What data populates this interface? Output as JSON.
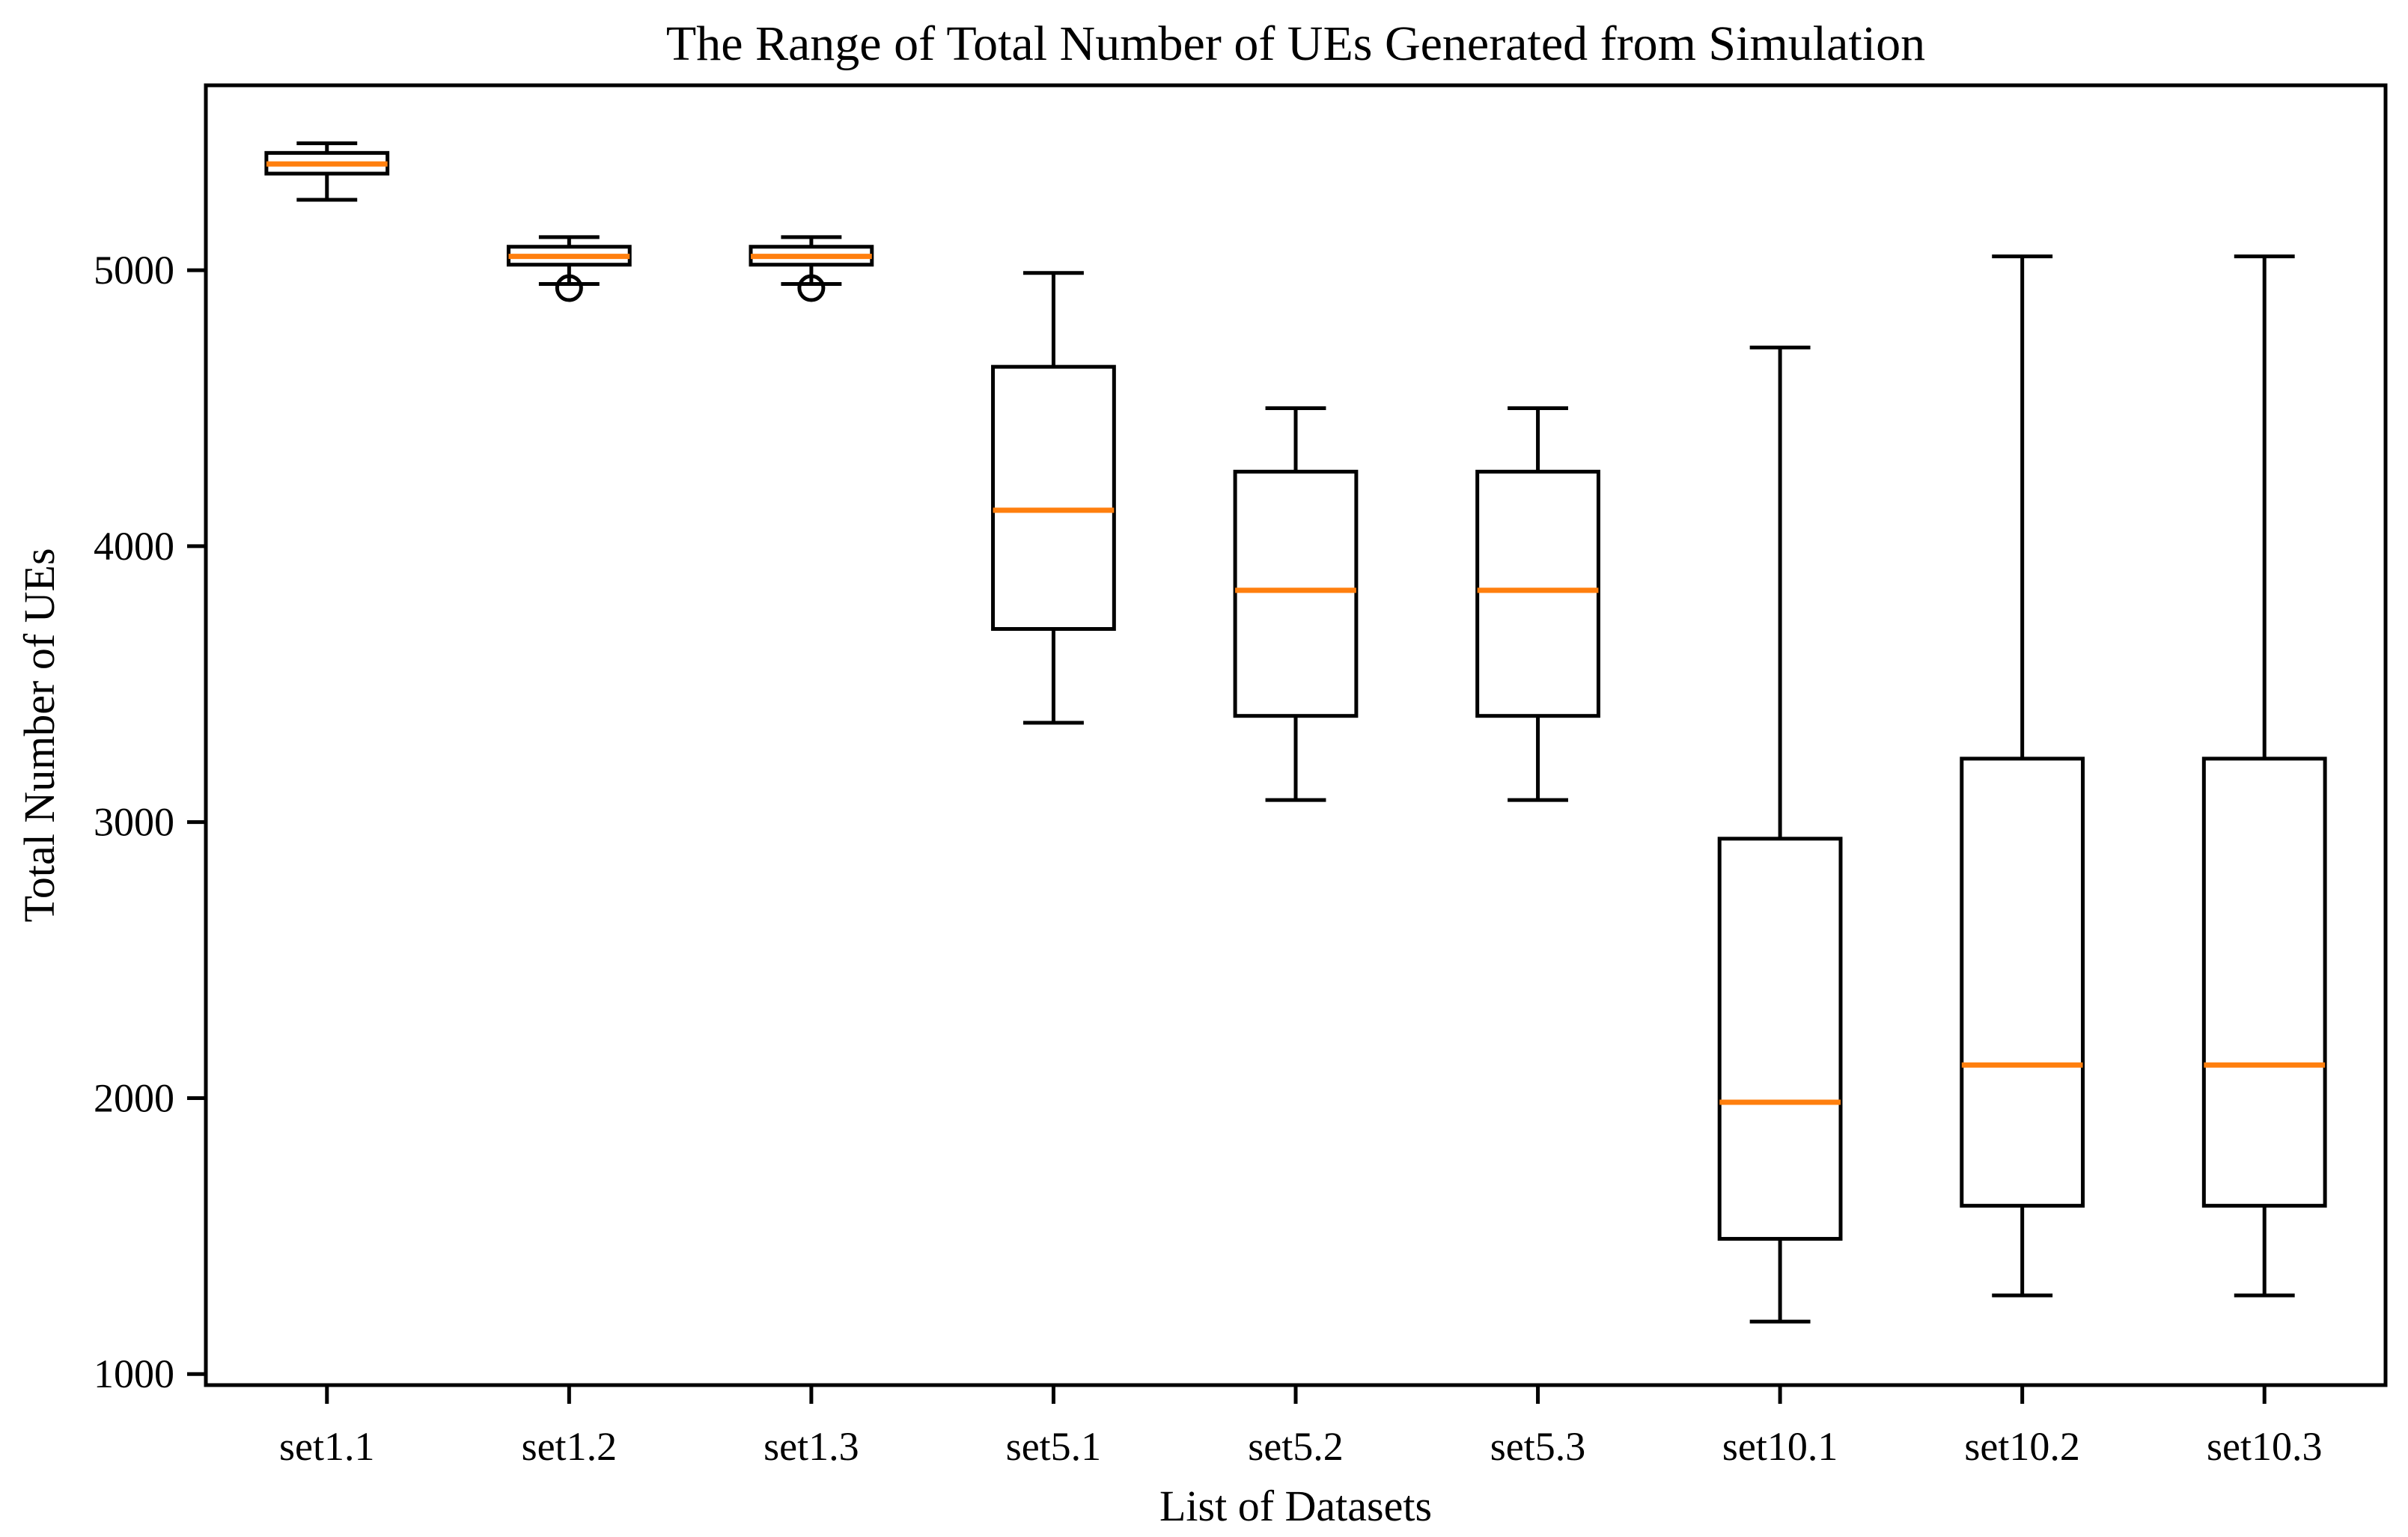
{
  "chart_data": {
    "type": "box",
    "title": "The Range of Total Number of UEs Generated from Simulation",
    "xlabel": "List of Datasets",
    "ylabel": "Total Number of UEs",
    "categories": [
      "set1.1",
      "set1.2",
      "set1.3",
      "set5.1",
      "set5.2",
      "set5.3",
      "set10.1",
      "set10.2",
      "set10.3"
    ],
    "y_ticks": [
      1000,
      2000,
      3000,
      4000,
      5000
    ],
    "ylim": [
      960,
      5670
    ],
    "xlim_units": [
      0.5,
      9.5
    ],
    "grid": "off",
    "legend": "none",
    "colors": {
      "median": "#ff7f0e",
      "box_stroke": "#000000",
      "axis": "#000000",
      "background": "#ffffff"
    },
    "boxes": [
      {
        "label": "set1.1",
        "whisker_low": 5255,
        "q1": 5350,
        "median": 5385,
        "q3": 5425,
        "whisker_high": 5460,
        "outliers": []
      },
      {
        "label": "set1.2",
        "whisker_low": 4950,
        "q1": 5020,
        "median": 5050,
        "q3": 5085,
        "whisker_high": 5120,
        "outliers": [
          4935
        ]
      },
      {
        "label": "set1.3",
        "whisker_low": 4950,
        "q1": 5020,
        "median": 5050,
        "q3": 5085,
        "whisker_high": 5120,
        "outliers": [
          4935
        ]
      },
      {
        "label": "set5.1",
        "whisker_low": 3360,
        "q1": 3700,
        "median": 4130,
        "q3": 4650,
        "whisker_high": 4990,
        "outliers": []
      },
      {
        "label": "set5.2",
        "whisker_low": 3080,
        "q1": 3385,
        "median": 3840,
        "q3": 4270,
        "whisker_high": 4500,
        "outliers": []
      },
      {
        "label": "set5.3",
        "whisker_low": 3080,
        "q1": 3385,
        "median": 3840,
        "q3": 4270,
        "whisker_high": 4500,
        "outliers": []
      },
      {
        "label": "set10.1",
        "whisker_low": 1190,
        "q1": 1490,
        "median": 1985,
        "q3": 2940,
        "whisker_high": 4720,
        "outliers": []
      },
      {
        "label": "set10.2",
        "whisker_low": 1285,
        "q1": 1610,
        "median": 2120,
        "q3": 3230,
        "whisker_high": 5050,
        "outliers": []
      },
      {
        "label": "set10.3",
        "whisker_low": 1285,
        "q1": 1610,
        "median": 2120,
        "q3": 3230,
        "whisker_high": 5050,
        "outliers": []
      }
    ]
  }
}
